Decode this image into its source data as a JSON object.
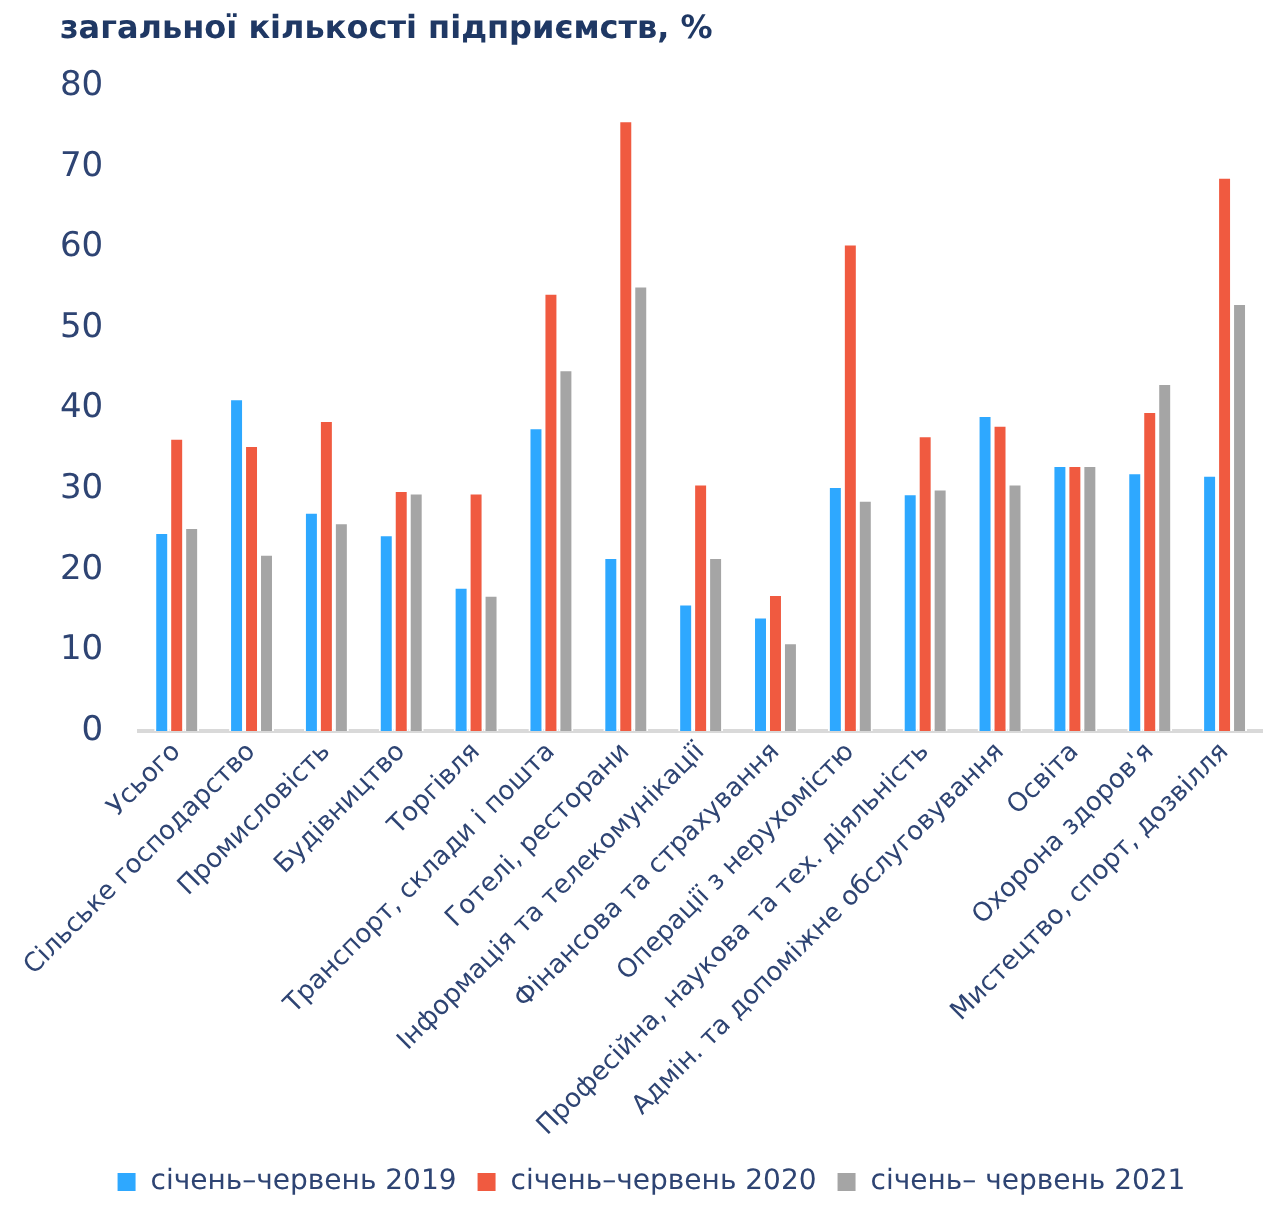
{
  "chart_data": {
    "type": "bar",
    "title": "загальної кількості підприємств, %",
    "categories": [
      "Усього",
      "Сільське господарство",
      "Промисловість",
      "Будівництво",
      "Торгівля",
      "Транспорт, склади і пошта",
      "Готелі, ресторани",
      "Інформація та телекомунікації",
      "Фінансова та страхування",
      "Операції з нерухомістю",
      "Професійна, наукова та тех. діяльність",
      "Адмін. та допоміжне обслуговування",
      "Освіта",
      "Охорона здоров'я",
      "Мистецтво, спорт, дозвілля"
    ],
    "series": [
      {
        "name": "січень–червень 2019",
        "color": "#2ea8ff",
        "values": [
          24.7,
          41.3,
          27.2,
          24.4,
          17.9,
          37.7,
          21.6,
          15.8,
          14.2,
          30.4,
          29.5,
          39.2,
          33.0,
          32.1,
          31.8
        ]
      },
      {
        "name": "січень–червень 2020",
        "color": "#f05a40",
        "values": [
          36.4,
          35.5,
          38.6,
          29.9,
          29.6,
          54.4,
          75.8,
          30.7,
          17.0,
          60.5,
          36.7,
          38.0,
          33.0,
          39.7,
          68.8
        ]
      },
      {
        "name": "січень– червень 2021",
        "color": "#a5a5a5",
        "values": [
          25.3,
          22.0,
          25.9,
          29.6,
          16.9,
          44.9,
          55.3,
          21.6,
          11.0,
          28.7,
          30.1,
          30.7,
          33.0,
          43.2,
          53.1
        ]
      }
    ],
    "ylim": [
      0,
      80
    ],
    "yticks": [
      0,
      10,
      20,
      30,
      40,
      50,
      60,
      70,
      80
    ],
    "grid": false,
    "legend": "bottom"
  }
}
